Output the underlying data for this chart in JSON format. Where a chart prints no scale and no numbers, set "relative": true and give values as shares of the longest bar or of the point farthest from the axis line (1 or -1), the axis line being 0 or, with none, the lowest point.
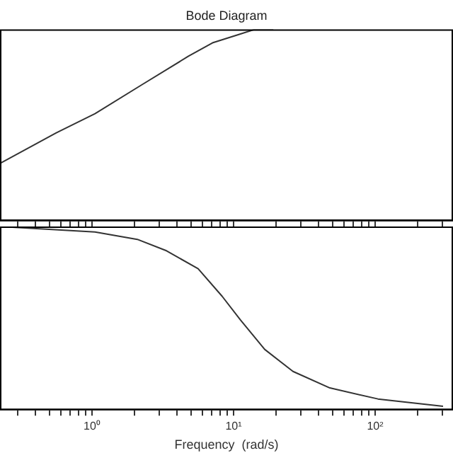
{
  "chart_data": [
    {
      "type": "line",
      "title": "Bode Diagram",
      "relative": true,
      "log": "x",
      "tick_labels": false,
      "grid": false,
      "xlim": [
        0.224,
        355
      ],
      "xticks": [
        {
          "value": 0.3,
          "label": null
        },
        {
          "value": 0.4,
          "label": null
        },
        {
          "value": 0.5,
          "label": null
        },
        {
          "value": 0.6,
          "label": null
        },
        {
          "value": 0.7,
          "label": null
        },
        {
          "value": 0.8,
          "label": null
        },
        {
          "value": 0.9,
          "label": null
        },
        {
          "value": 1,
          "label": null
        },
        {
          "value": 2,
          "label": null
        },
        {
          "value": 3,
          "label": null
        },
        {
          "value": 4,
          "label": null
        },
        {
          "value": 5,
          "label": null
        },
        {
          "value": 6,
          "label": null
        },
        {
          "value": 7,
          "label": null
        },
        {
          "value": 8,
          "label": null
        },
        {
          "value": 9,
          "label": null
        },
        {
          "value": 10,
          "label": null
        },
        {
          "value": 20,
          "label": null
        },
        {
          "value": 30,
          "label": null
        },
        {
          "value": 40,
          "label": null
        },
        {
          "value": 50,
          "label": null
        },
        {
          "value": 60,
          "label": null
        },
        {
          "value": 70,
          "label": null
        },
        {
          "value": 80,
          "label": null
        },
        {
          "value": 90,
          "label": null
        },
        {
          "value": 100,
          "label": null
        },
        {
          "value": 200,
          "label": null
        },
        {
          "value": 300,
          "label": null
        }
      ],
      "series": [
        {
          "color": "#333333",
          "x": [
            0.224,
            0.56,
            1.05,
            2.24,
            4.8,
            7.1,
            10.5,
            14.1,
            19.1
          ],
          "values": [
            0.3,
            0.46,
            0.56,
            0.71,
            0.86,
            0.93,
            0.97,
            1.0,
            1.0
          ]
        }
      ]
    },
    {
      "type": "line",
      "xlabel": "Frequency  (rad/s)",
      "relative": true,
      "log": "x",
      "tick_labels": "x",
      "grid": false,
      "xlim": [
        0.224,
        355
      ],
      "xticks": [
        {
          "value": 0.3,
          "label": null
        },
        {
          "value": 0.4,
          "label": null
        },
        {
          "value": 0.5,
          "label": null
        },
        {
          "value": 0.6,
          "label": null
        },
        {
          "value": 0.7,
          "label": null
        },
        {
          "value": 0.8,
          "label": null
        },
        {
          "value": 0.9,
          "label": null
        },
        {
          "value": 1,
          "label": "10⁰"
        },
        {
          "value": 2,
          "label": null
        },
        {
          "value": 3,
          "label": null
        },
        {
          "value": 4,
          "label": null
        },
        {
          "value": 5,
          "label": null
        },
        {
          "value": 6,
          "label": null
        },
        {
          "value": 7,
          "label": null
        },
        {
          "value": 8,
          "label": null
        },
        {
          "value": 9,
          "label": null
        },
        {
          "value": 10,
          "label": "10¹"
        },
        {
          "value": 20,
          "label": null
        },
        {
          "value": 30,
          "label": null
        },
        {
          "value": 40,
          "label": null
        },
        {
          "value": 50,
          "label": null
        },
        {
          "value": 60,
          "label": null
        },
        {
          "value": 70,
          "label": null
        },
        {
          "value": 80,
          "label": null
        },
        {
          "value": 90,
          "label": null
        },
        {
          "value": 100,
          "label": "10²"
        },
        {
          "value": 200,
          "label": null
        },
        {
          "value": 300,
          "label": null
        }
      ],
      "series": [
        {
          "color": "#333333",
          "x": [
            0.224,
            1.05,
            2.09,
            3.31,
            5.62,
            8.3,
            11.2,
            16.6,
            26.3,
            47.9,
            104.7,
            302
          ],
          "values": [
            1,
            0.97,
            0.93,
            0.87,
            0.77,
            0.62,
            0.49,
            0.33,
            0.21,
            0.12,
            0.06,
            0.02
          ]
        }
      ]
    }
  ]
}
